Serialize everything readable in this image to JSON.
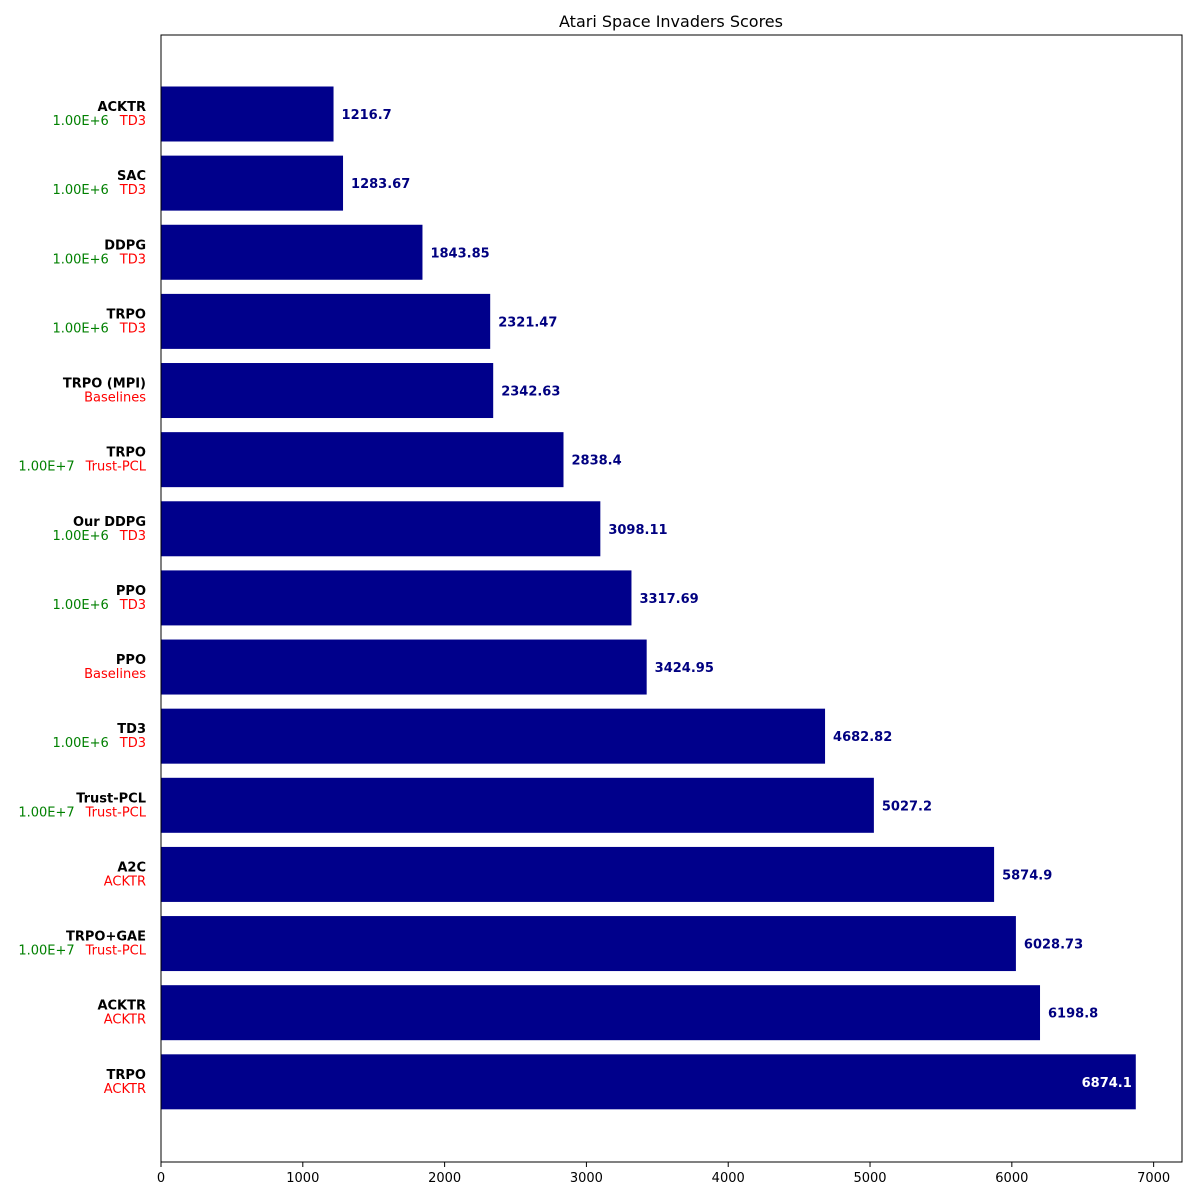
{
  "chart_data": {
    "type": "bar",
    "orientation": "horizontal",
    "title": "Atari Space Invaders Scores",
    "xlabel": "",
    "ylabel": "",
    "xlim": [
      0,
      7200
    ],
    "xticks": [
      0,
      1000,
      2000,
      3000,
      4000,
      5000,
      6000,
      7000
    ],
    "grid": false,
    "bar_color": "#00008b",
    "value_label_color": "#000080",
    "inside_label_color": "#ffffff",
    "step_label_color": "#008000",
    "source_label_color": "#ff0000",
    "bars": [
      {
        "label": "ACKTR",
        "steps": "1.00E+6",
        "source": "TD3",
        "value": 1216.7
      },
      {
        "label": "SAC",
        "steps": "1.00E+6",
        "source": "TD3",
        "value": 1283.67
      },
      {
        "label": "DDPG",
        "steps": "1.00E+6",
        "source": "TD3",
        "value": 1843.85
      },
      {
        "label": "TRPO",
        "steps": "1.00E+6",
        "source": "TD3",
        "value": 2321.47
      },
      {
        "label": "TRPO (MPI)",
        "steps": "",
        "source": "Baselines",
        "value": 2342.63
      },
      {
        "label": "TRPO",
        "steps": "1.00E+7",
        "source": "Trust-PCL",
        "value": 2838.4
      },
      {
        "label": "Our DDPG",
        "steps": "1.00E+6",
        "source": "TD3",
        "value": 3098.11
      },
      {
        "label": "PPO",
        "steps": "1.00E+6",
        "source": "TD3",
        "value": 3317.69
      },
      {
        "label": "PPO",
        "steps": "",
        "source": "Baselines",
        "value": 3424.95
      },
      {
        "label": "TD3",
        "steps": "1.00E+6",
        "source": "TD3",
        "value": 4682.82
      },
      {
        "label": "Trust-PCL",
        "steps": "1.00E+7",
        "source": "Trust-PCL",
        "value": 5027.2
      },
      {
        "label": "A2C",
        "steps": "",
        "source": "ACKTR",
        "value": 5874.9
      },
      {
        "label": "TRPO+GAE",
        "steps": "1.00E+7",
        "source": "Trust-PCL",
        "value": 6028.73
      },
      {
        "label": "ACKTR",
        "steps": "",
        "source": "ACKTR",
        "value": 6198.8
      },
      {
        "label": "TRPO",
        "steps": "",
        "source": "ACKTR",
        "value": 6874.1,
        "value_label_inside": true
      }
    ]
  }
}
